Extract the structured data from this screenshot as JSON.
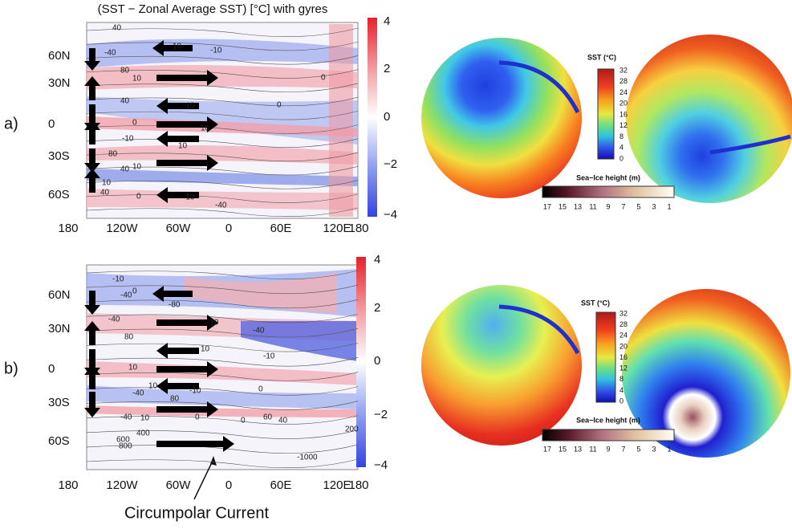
{
  "title": "(SST − Zonal Average SST) [°C] with gyres",
  "annotation": "Circumpolar Current",
  "panels": [
    {
      "label": "a)",
      "x_ticks": [
        "180",
        "120W",
        "60W",
        "0",
        "60E",
        "120E",
        "180"
      ],
      "y_ticks": [
        "60N",
        "30N",
        "0",
        "30S",
        "60S"
      ],
      "colorbar_ticks": [
        "4",
        "2",
        "0",
        "−2",
        "−4"
      ],
      "contour_labels": [
        "40",
        "10",
        "-10",
        "-40",
        "80",
        "10",
        "0",
        "40",
        "-10",
        "0",
        "0",
        "10",
        "-10",
        "10",
        "80",
        "10",
        "40",
        "10",
        "40",
        "0",
        "-10",
        "-40"
      ],
      "sst_legend": {
        "title": "SST (°C)",
        "ticks": [
          "32",
          "28",
          "24",
          "20",
          "16",
          "12",
          "8",
          "4",
          "0"
        ]
      },
      "ice_legend": {
        "title": "Sea−Ice height (m)",
        "ticks": [
          "17",
          "15",
          "13",
          "11",
          "9",
          "7",
          "5",
          "3",
          "1"
        ]
      }
    },
    {
      "label": "b)",
      "x_ticks": [
        "180",
        "120W",
        "60W",
        "0",
        "60E",
        "120E",
        "180"
      ],
      "y_ticks": [
        "60N",
        "30N",
        "0",
        "30S",
        "60S"
      ],
      "colorbar_ticks": [
        "4",
        "2",
        "0",
        "−2",
        "−4"
      ],
      "contour_labels": [
        "-10",
        "0",
        "-40",
        "-80",
        "-40",
        "-10",
        "80",
        "-40",
        "10",
        "-10",
        "10",
        "10",
        "-10",
        "0",
        "-40",
        "80",
        "0",
        "-40",
        "10",
        "0",
        "60",
        "40",
        "200",
        "400",
        "600",
        "800",
        "-1000"
      ],
      "sst_legend": {
        "title": "SST (°C)",
        "ticks": [
          "32",
          "28",
          "24",
          "20",
          "16",
          "12",
          "8",
          "4",
          "0"
        ]
      },
      "ice_legend": {
        "title": "Sea−Ice height (m)",
        "ticks": [
          "17",
          "15",
          "13",
          "11",
          "9",
          "7",
          "5",
          "3",
          "1"
        ]
      }
    }
  ]
}
